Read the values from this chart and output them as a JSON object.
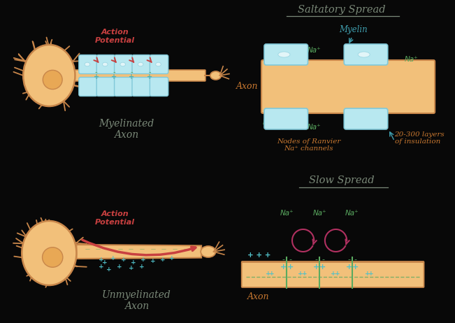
{
  "bg_color": "#080808",
  "axon_color": "#f2c07a",
  "axon_color2": "#f0b86a",
  "axon_border": "#c8864a",
  "myelin_color": "#b8e8f0",
  "myelin_border": "#80c8d8",
  "text_gray": "#7a8878",
  "text_red": "#c84040",
  "text_green": "#5aaa60",
  "text_teal": "#40a0b0",
  "text_orange": "#c87830",
  "title_saltatory": "Saltatory Spread",
  "title_slow": "Slow Spread",
  "label_myelinated": "Myelinated\nAxon",
  "label_unmyelinated": "Unmyelinated\nAxon",
  "label_action_potential": "Action\nPotential",
  "label_axon": "Axon",
  "label_myelin": "Myelin",
  "label_nodes": "Nodes of Ranvier\nNa⁺ channels",
  "label_insulation": "20-300 layers\nof insulation"
}
